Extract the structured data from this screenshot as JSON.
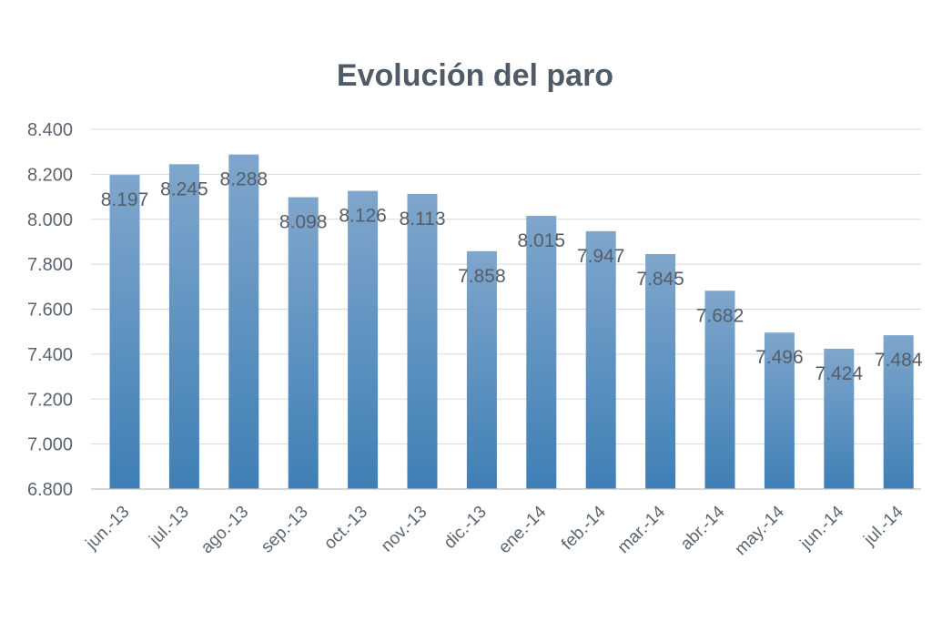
{
  "chart_data": {
    "type": "bar",
    "title": "Evolución  del paro",
    "xlabel": "",
    "ylabel": "",
    "categories": [
      "jun.-13",
      "jul.-13",
      "ago.-13",
      "sep.-13",
      "oct.-13",
      "nov.-13",
      "dic.-13",
      "ene.-14",
      "feb.-14",
      "mar.-14",
      "abr.-14",
      "may.-14",
      "jun.-14",
      "jul.-14"
    ],
    "values": [
      8197,
      8245,
      8288,
      8098,
      8126,
      8113,
      7858,
      8015,
      7947,
      7845,
      7682,
      7496,
      7424,
      7484
    ],
    "data_labels": [
      "8.197",
      "8.245",
      "8.288",
      "8.098",
      "8.126",
      "8.113",
      "7.858",
      "8.015",
      "7.947",
      "7.845",
      "7.682",
      "7.496",
      "7.424",
      "7.484"
    ],
    "ylim": [
      6800,
      8400
    ],
    "yticks": [
      6800,
      7000,
      7200,
      7400,
      7600,
      7800,
      8000,
      8200,
      8400
    ],
    "ytick_labels": [
      "6.800",
      "7.000",
      "7.200",
      "7.400",
      "7.600",
      "7.800",
      "8.000",
      "8.200",
      "8.400"
    ],
    "grid": true,
    "legend": "none",
    "colors": {
      "bar_top": "#7fa6cc",
      "bar_bottom": "#3f7fb5",
      "grid": "#d9d9d9",
      "text": "#5b6570",
      "title": "#4f5b67"
    }
  }
}
